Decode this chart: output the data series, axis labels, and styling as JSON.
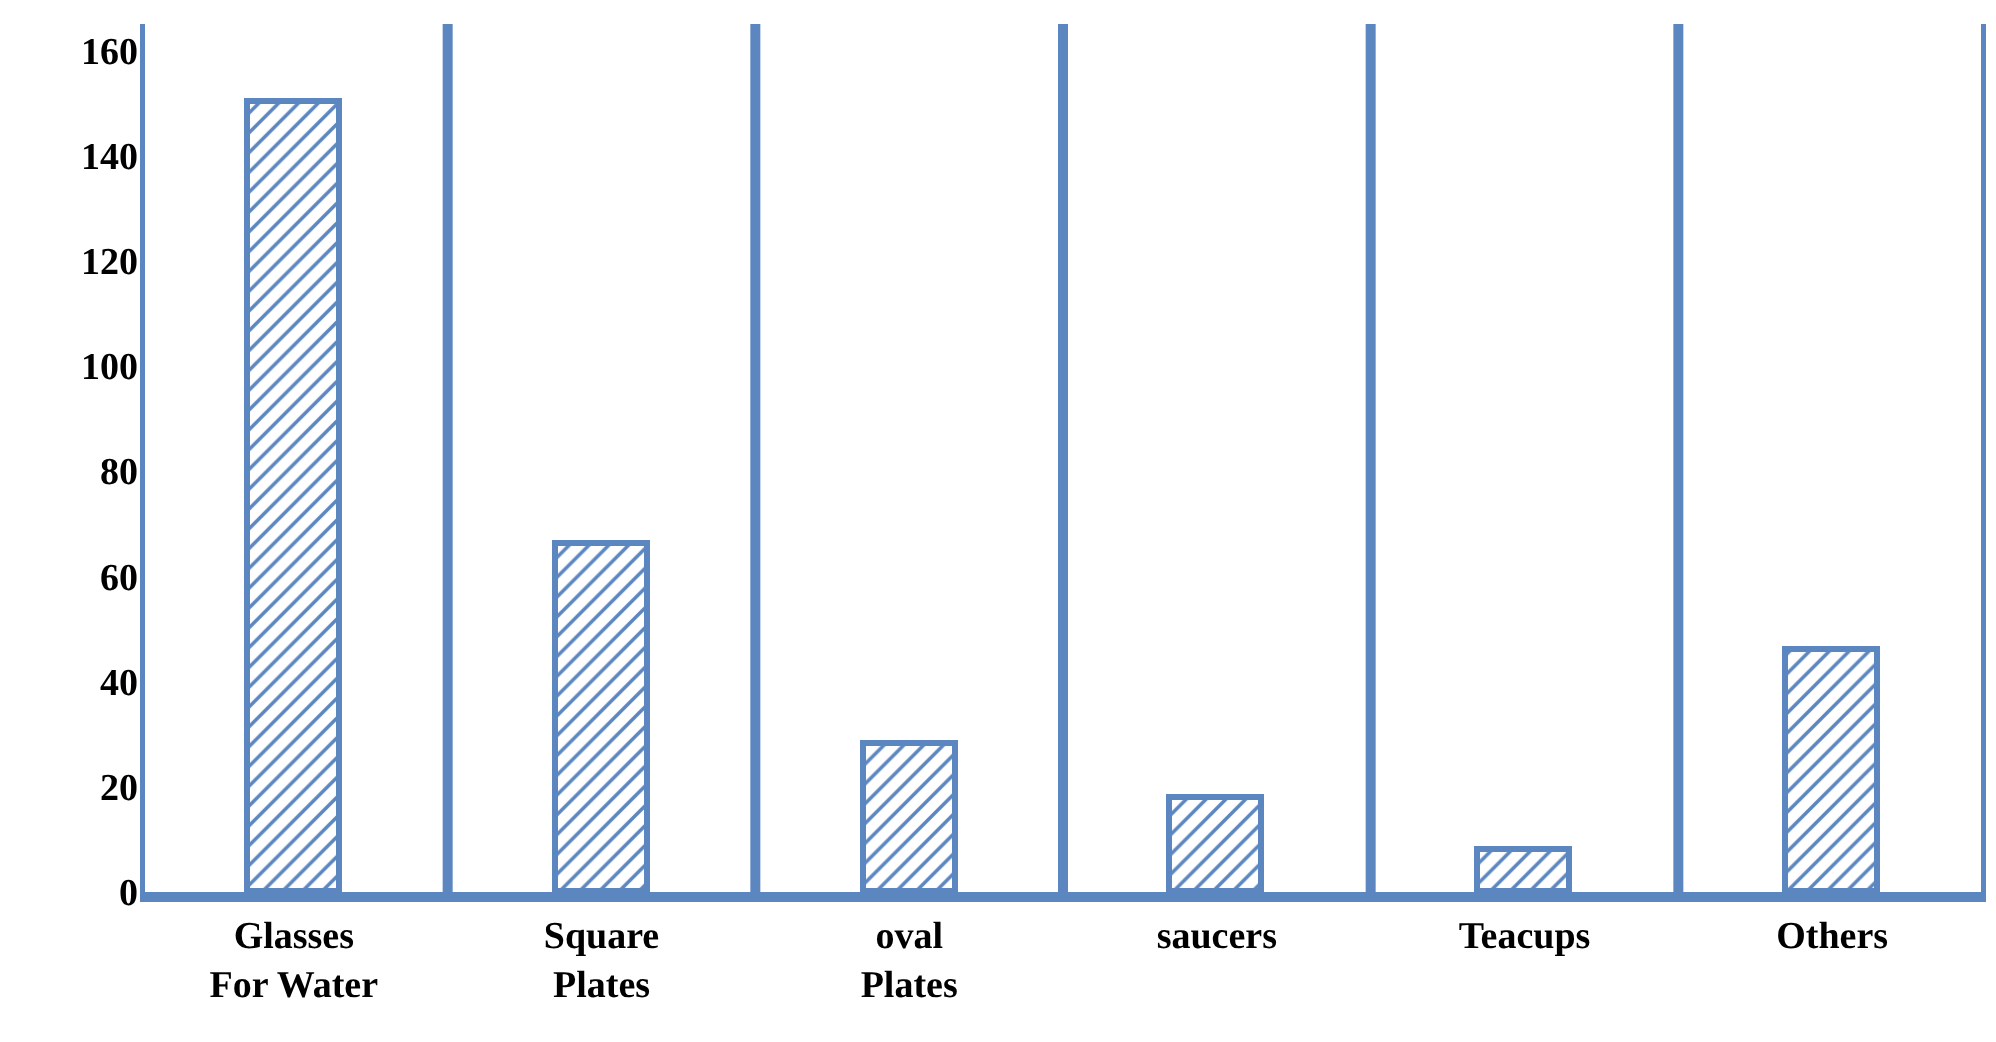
{
  "chart_data": {
    "type": "bar",
    "categories": [
      "Glasses For Water",
      "Square Plates",
      "oval Plates",
      "saucers",
      "Teacups",
      "Others"
    ],
    "values": [
      150,
      66,
      28,
      18,
      8,
      46
    ],
    "color": "#5b86c0",
    "ylim": [
      0,
      165
    ],
    "yticks": [
      0,
      20,
      40,
      60,
      80,
      100,
      120,
      140,
      160
    ],
    "grid": "x"
  }
}
